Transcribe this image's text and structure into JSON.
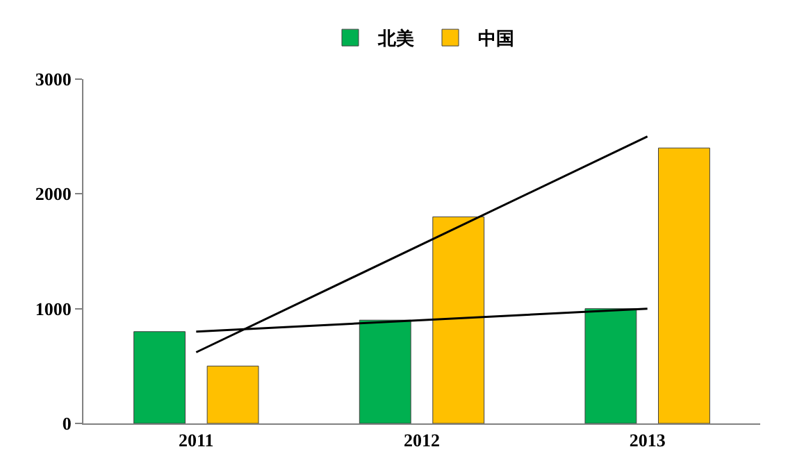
{
  "chart_data": {
    "type": "bar",
    "categories": [
      "2011",
      "2012",
      "2013"
    ],
    "series": [
      {
        "name": "北美",
        "color": "#00b050",
        "values": [
          800,
          900,
          1000
        ]
      },
      {
        "name": "中国",
        "color": "#ffc000",
        "values": [
          500,
          1800,
          2400
        ]
      },
      {
        "type": "line",
        "color": "#000000",
        "values": [
          800,
          null,
          1000
        ]
      },
      {
        "type": "line",
        "color": "#000000",
        "values": [
          620,
          null,
          2500
        ]
      }
    ],
    "ylim": [
      0,
      3000
    ],
    "yticks": [
      0,
      1000,
      2000,
      3000
    ],
    "legend": "top",
    "line_style": "solid",
    "marker": "none"
  }
}
